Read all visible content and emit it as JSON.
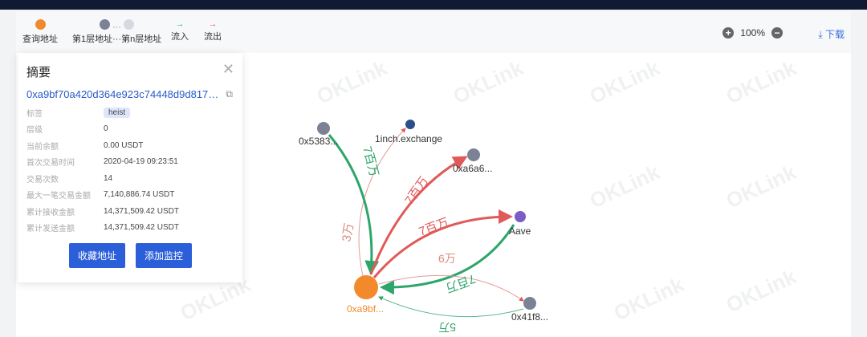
{
  "legend": {
    "query": "查询地址",
    "layers": "第1层地址···第n层地址",
    "inflow": "流入",
    "outflow": "流出"
  },
  "colors": {
    "query": "#f28a2c",
    "layer1": "#7c8294",
    "layern": "#d6d8e2",
    "inflow": "#2ea56a",
    "outflow": "#e05a5a",
    "accent": "#2b5fd9"
  },
  "toolbar": {
    "zoom": "100%",
    "download": "下载"
  },
  "summary": {
    "title": "摘要",
    "address": "0xa9bf70a420d364e923c74448d9d817…",
    "rows": [
      {
        "k": "标签",
        "v": "heist"
      },
      {
        "k": "层级",
        "v": "0"
      },
      {
        "k": "当前余额",
        "v": "0.00 USDT"
      },
      {
        "k": "首次交易时间",
        "v": "2020-04-19 09:23:51"
      },
      {
        "k": "交易次数",
        "v": "14"
      },
      {
        "k": "最大一笔交易金额",
        "v": "7,140,886.74 USDT"
      },
      {
        "k": "累计接收金额",
        "v": "14,371,509.42 USDT"
      },
      {
        "k": "累计发送金额",
        "v": "14,371,509.42 USDT"
      }
    ],
    "fav": "收藏地址",
    "monitor": "添加监控"
  },
  "graph": {
    "watermark": "OKLink",
    "nodes": {
      "center": "0xa9bf...",
      "n5383": "0x5383...",
      "inch": "1inch.exchange",
      "a6a6": "0xa6a6...",
      "aave": "Aave",
      "n41f8": "0x41f8..."
    },
    "edges": {
      "to_inch": "3万",
      "from_5383": "7百万",
      "to_a6a6": "7百万",
      "to_aave": "7百万",
      "from_aave": "7百万",
      "to_41f8": "6万",
      "from_41f8": "5万"
    }
  }
}
